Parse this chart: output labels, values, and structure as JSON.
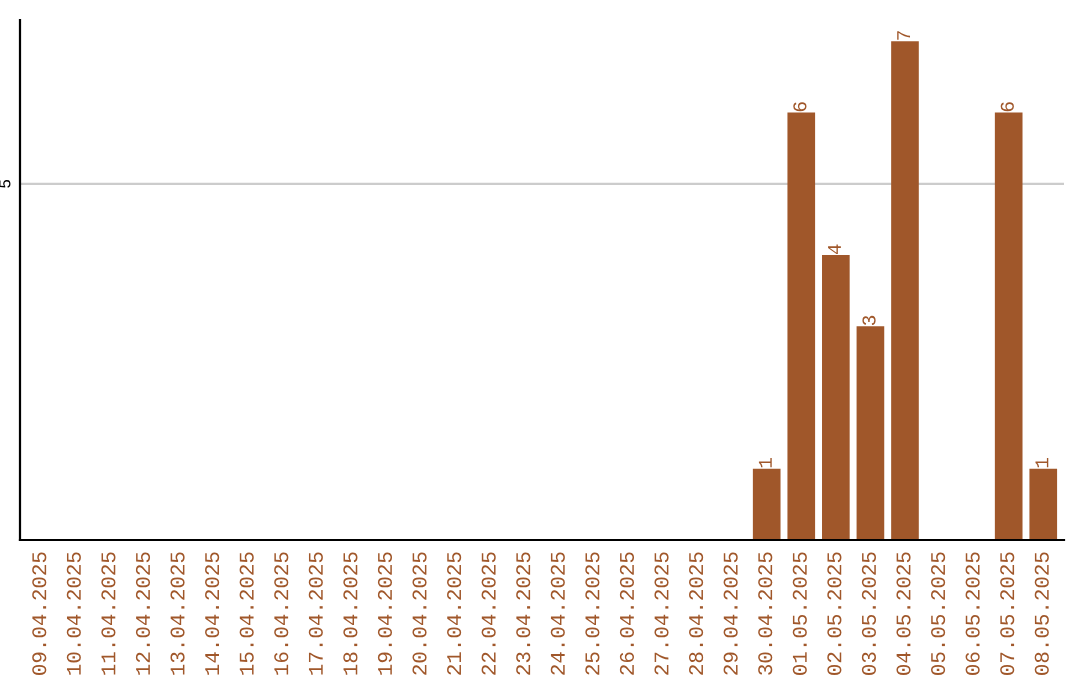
{
  "chart_data": {
    "type": "bar",
    "categories": [
      "09.04.2025",
      "10.04.2025",
      "11.04.2025",
      "12.04.2025",
      "13.04.2025",
      "14.04.2025",
      "15.04.2025",
      "16.04.2025",
      "17.04.2025",
      "18.04.2025",
      "19.04.2025",
      "20.04.2025",
      "21.04.2025",
      "22.04.2025",
      "23.04.2025",
      "24.04.2025",
      "25.04.2025",
      "26.04.2025",
      "27.04.2025",
      "28.04.2025",
      "29.04.2025",
      "30.04.2025",
      "01.05.2025",
      "02.05.2025",
      "03.05.2025",
      "04.05.2025",
      "05.05.2025",
      "06.05.2025",
      "07.05.2025",
      "08.05.2025"
    ],
    "values": [
      null,
      null,
      null,
      null,
      null,
      null,
      null,
      null,
      null,
      null,
      null,
      null,
      null,
      null,
      null,
      null,
      null,
      null,
      null,
      null,
      null,
      1,
      6,
      4,
      3,
      7,
      null,
      null,
      6,
      1
    ],
    "data_labels": true,
    "color": "#a0572a",
    "ylim": [
      0,
      7.3
    ],
    "ref_lines": [
      {
        "axis": "y",
        "value": 5,
        "label": "5",
        "color": "#cccccc"
      }
    ]
  }
}
